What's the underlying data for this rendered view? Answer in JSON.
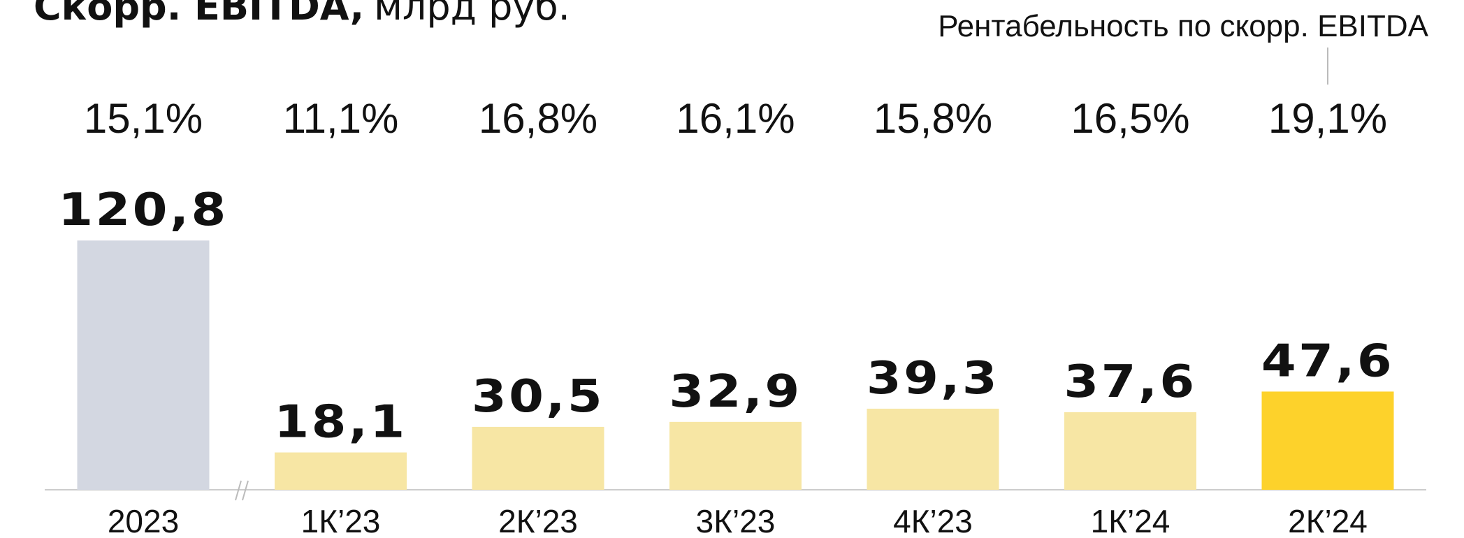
{
  "chart_data": {
    "type": "bar",
    "title": "Скорр. EBITDA,",
    "subtitle": "млрд руб.",
    "annotation": "Рентабельность по скорр. EBITDA",
    "categories": [
      "2023",
      "1К’23",
      "2К’23",
      "3К’23",
      "4К’23",
      "1К’24",
      "2К’24"
    ],
    "values": [
      120.8,
      18.1,
      30.5,
      32.9,
      39.3,
      37.6,
      47.6
    ],
    "value_labels": [
      "120,8",
      "18,1",
      "30,5",
      "32,9",
      "39,3",
      "37,6",
      "47,6"
    ],
    "colors": [
      "#d3d7e1",
      "#f7e6a4",
      "#f7e6a4",
      "#f7e6a4",
      "#f7e6a4",
      "#f7e6a4",
      "#fdd22b"
    ],
    "margin": {
      "values": [
        15.1,
        11.1,
        16.8,
        16.1,
        15.8,
        16.5,
        19.1
      ],
      "value_labels": [
        "15,1%",
        "11,1%",
        "16,8%",
        "16,1%",
        "15,8%",
        "16,5%",
        "19,1%"
      ]
    },
    "ylim": [
      0,
      150
    ]
  }
}
